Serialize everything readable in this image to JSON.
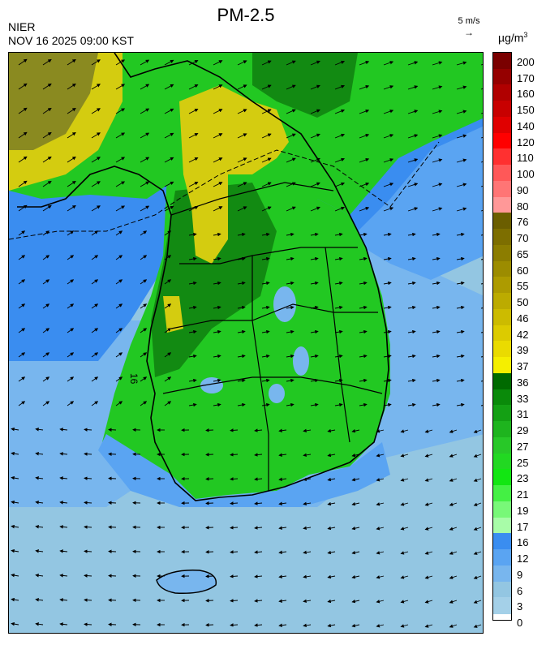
{
  "title": "PM-2.5",
  "org": "NIER",
  "datetime": "NOV 16 2025 09:00 KST",
  "wind_reference": {
    "label": "5 m/s",
    "arrow": "→"
  },
  "unit": {
    "base": "µg/m",
    "exp": "3"
  },
  "contour_label": "16",
  "legend": {
    "labels": [
      "200",
      "170",
      "160",
      "150",
      "140",
      "120",
      "110",
      "100",
      "90",
      "80",
      "76",
      "70",
      "65",
      "60",
      "55",
      "50",
      "46",
      "42",
      "39",
      "37",
      "36",
      "33",
      "31",
      "29",
      "27",
      "25",
      "23",
      "21",
      "19",
      "17",
      "16",
      "12",
      "9",
      "6",
      "3",
      "0"
    ],
    "colors": [
      "#7a0000",
      "#950000",
      "#b00000",
      "#c80000",
      "#e00000",
      "#ff0000",
      "#ff3030",
      "#ff5858",
      "#ff7575",
      "#ff9898",
      "#6b5e00",
      "#7d6e00",
      "#8c7d00",
      "#9c8c00",
      "#ad9b00",
      "#bcab00",
      "#ccbb00",
      "#dccb00",
      "#eadb00",
      "#f5ef00",
      "#006a00",
      "#0a8a0a",
      "#14a014",
      "#1eb41e",
      "#28c828",
      "#22d822",
      "#12e612",
      "#44f044",
      "#78f878",
      "#a8fca8",
      "#3a8df0",
      "#5aa4f2",
      "#78b6ee",
      "#93c6e2",
      "#a4d0e8"
    ]
  },
  "colors": {
    "sea": "#93c6e2",
    "sea_mid": "#78b6ee",
    "sea_deep": "#5aa4f2",
    "land_green": "#22c822",
    "land_dark": "#128a12",
    "yellow": "#d4cc10",
    "olive": "#8a8a20"
  }
}
